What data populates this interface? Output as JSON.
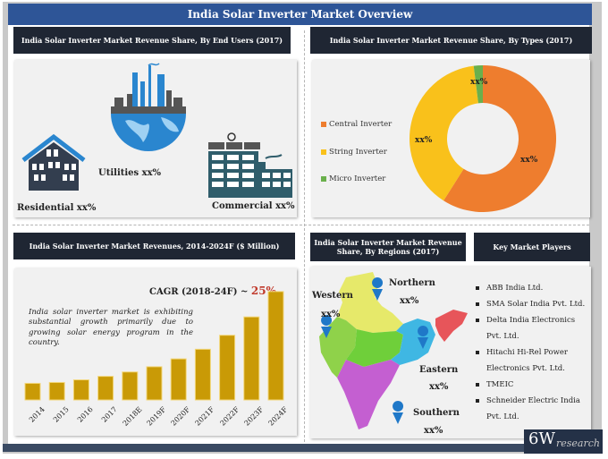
{
  "title": "India Solar Inverter Market Overview",
  "end_users": {
    "header": "India Solar Inverter Market Revenue Share, By  End Users (2017)",
    "items": [
      {
        "label": "Residential xx%",
        "icon": "house-icon"
      },
      {
        "label": "Utilities xx%",
        "icon": "globe-factory-icon"
      },
      {
        "label": "Commercial xx%",
        "icon": "commercial-building-icon"
      }
    ],
    "colors": {
      "house": "#333e4f",
      "globe": "#2a86cf",
      "commercial": "#2f5d6b"
    }
  },
  "types": {
    "header": "India Solar Inverter Market Revenue Share, By Types (2017)"
  },
  "revenues": {
    "header": "India  Solar Inverter Market Revenues, 2014-2024F ($ Million)",
    "cagr_label": "CAGR (2018-24F) ~ ",
    "cagr_value": "25%",
    "description": "India solar inverter market is exhibiting substantial growth primarily due to growing solar energy program in the country."
  },
  "regions": {
    "header": "India Solar Inverter Market Revenue Share, By Regions (2017)",
    "items": [
      {
        "name": "Northern",
        "value": "xx%"
      },
      {
        "name": "Western",
        "value": "xx%"
      },
      {
        "name": "Eastern",
        "value": "xx%"
      },
      {
        "name": "Southern",
        "value": "xx%"
      }
    ],
    "colors": {
      "north": "#e6e96a",
      "west": "#8fd24a",
      "central": "#6fcf3a",
      "east": "#3fb7e3",
      "northeast": "#e7555a",
      "south": "#c45fd1",
      "pin": "#1f78c8"
    }
  },
  "players": {
    "header": "Key Market Players",
    "items": [
      "ABB India Ltd.",
      "SMA Solar India Pvt. Ltd.",
      "Delta India Electronics Pvt. Ltd.",
      "Hitachi Hi-Rel Power Electronics Pvt. Ltd.",
      "TMEIC",
      "Schneider Electric India Pvt. Ltd."
    ]
  },
  "logo": {
    "big": "6W",
    "small": "research"
  },
  "chart_data": [
    {
      "type": "pie",
      "title": "India Solar Inverter Market Revenue Share, By Types (2017)",
      "categories": [
        "Central Inverter",
        "String Inverter",
        "Micro Inverter"
      ],
      "values": [
        59,
        39,
        2
      ],
      "value_labels": [
        "xx%",
        "xx%",
        "xx%"
      ],
      "colors": [
        "#ee7d2e",
        "#f9c11b",
        "#6ab04c"
      ],
      "legend": "left",
      "donut": true
    },
    {
      "type": "bar",
      "title": "India  Solar Inverter Market Revenues, 2014-2024F ($ Million)",
      "categories": [
        "2014",
        "2015",
        "2016",
        "2017",
        "2018E",
        "2019F",
        "2020F",
        "2021F",
        "2022F",
        "2023F",
        "2024F"
      ],
      "values": [
        19,
        20,
        23,
        27,
        32,
        38,
        47,
        58,
        74,
        95,
        124
      ],
      "values_note": "relative, no axis shown",
      "xlabel": "",
      "ylabel": "",
      "ylim": [
        0,
        130
      ],
      "color": "#c99a06",
      "grid": false
    }
  ]
}
